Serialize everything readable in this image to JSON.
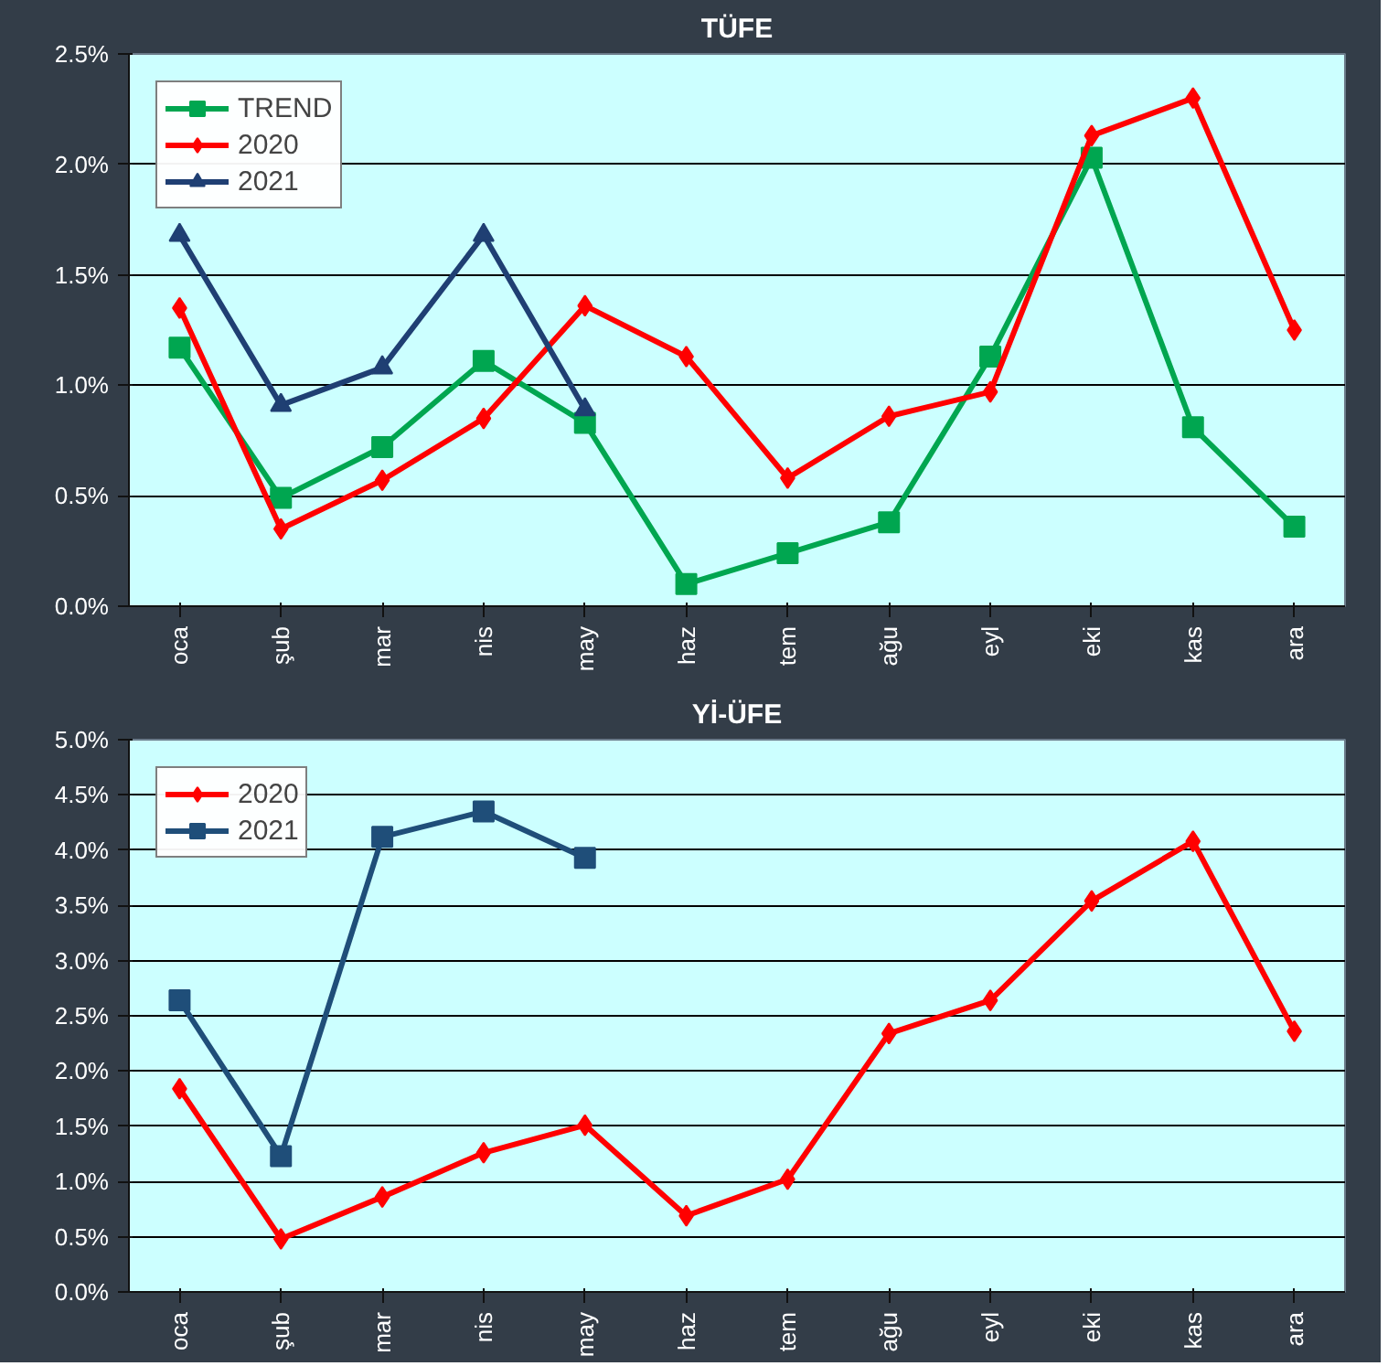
{
  "chart_data": [
    {
      "type": "line",
      "title": "TÜFE",
      "categories": [
        "oca",
        "şub",
        "mar",
        "nis",
        "may",
        "haz",
        "tem",
        "ağu",
        "eyl",
        "eki",
        "kas",
        "ara"
      ],
      "series": [
        {
          "name": "TREND",
          "color": "#00a650",
          "marker": "square",
          "values": [
            1.17,
            0.49,
            0.72,
            1.11,
            0.83,
            0.1,
            0.24,
            0.38,
            1.13,
            2.03,
            0.81,
            0.36
          ]
        },
        {
          "name": "2020",
          "color": "#ff0000",
          "marker": "diamond",
          "values": [
            1.35,
            0.35,
            0.57,
            0.85,
            1.36,
            1.13,
            0.58,
            0.86,
            0.97,
            2.13,
            2.3,
            1.25
          ]
        },
        {
          "name": "2021",
          "color": "#1f3f73",
          "marker": "triangle",
          "values": [
            1.68,
            0.91,
            1.08,
            1.68,
            0.89,
            null,
            null,
            null,
            null,
            null,
            null,
            null
          ]
        }
      ],
      "ylim": [
        0,
        2.5
      ],
      "yticks": [
        {
          "value": 0,
          "label": "0.0%"
        },
        {
          "value": 0.5,
          "label": "0.5%"
        },
        {
          "value": 1.0,
          "label": "1.0%"
        },
        {
          "value": 1.5,
          "label": "1.5%"
        },
        {
          "value": 2.0,
          "label": "2.0%"
        },
        {
          "value": 2.5,
          "label": "2.5%"
        }
      ],
      "grid": "y",
      "legend": "top left",
      "line_style": "solid"
    },
    {
      "type": "line",
      "title": "Yİ-ÜFE",
      "categories": [
        "oca",
        "şub",
        "mar",
        "nis",
        "may",
        "haz",
        "tem",
        "ağu",
        "eyl",
        "eki",
        "kas",
        "ara"
      ],
      "series": [
        {
          "name": "2020",
          "color": "#ff0000",
          "marker": "diamond",
          "values": [
            1.84,
            0.48,
            0.86,
            1.26,
            1.51,
            0.69,
            1.02,
            2.34,
            2.64,
            3.54,
            4.08,
            2.36
          ]
        },
        {
          "name": "2021",
          "color": "#1f4e79",
          "marker": "square",
          "values": [
            2.64,
            1.23,
            4.12,
            4.35,
            3.93,
            null,
            null,
            null,
            null,
            null,
            null,
            null
          ]
        }
      ],
      "ylim": [
        0,
        5
      ],
      "yticks": [
        {
          "value": 0,
          "label": "0.0%"
        },
        {
          "value": 0.5,
          "label": "0.5%"
        },
        {
          "value": 1.0,
          "label": "1.0%"
        },
        {
          "value": 1.5,
          "label": "1.5%"
        },
        {
          "value": 2.0,
          "label": "2.0%"
        },
        {
          "value": 2.5,
          "label": "2.5%"
        },
        {
          "value": 3.0,
          "label": "3.0%"
        },
        {
          "value": 3.5,
          "label": "3.5%"
        },
        {
          "value": 4.0,
          "label": "4.0%"
        },
        {
          "value": 4.5,
          "label": "4.5%"
        },
        {
          "value": 5.0,
          "label": "5.0%"
        }
      ],
      "grid": "y",
      "legend": "top left",
      "line_style": "solid"
    }
  ]
}
